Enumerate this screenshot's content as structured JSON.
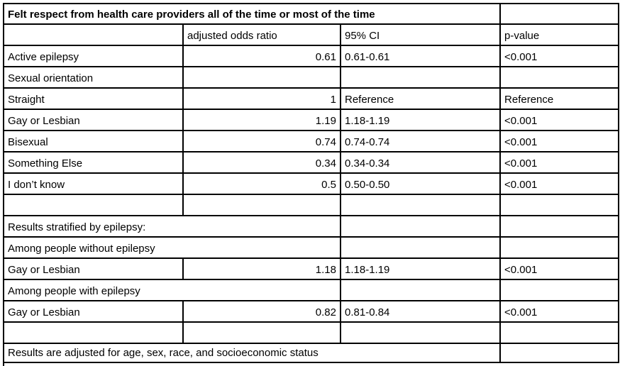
{
  "chart_data": {
    "type": "table",
    "title": "Felt respect from health care providers all of the time or most of the time",
    "columns": [
      "",
      "adjusted odds ratio",
      "95% CI",
      "p-value"
    ],
    "rows": [
      [
        "Active epilepsy",
        "0.61",
        "0.61-0.61",
        "<0.001"
      ],
      [
        "Sexual orientation",
        "",
        "",
        ""
      ],
      [
        "Straight",
        "1",
        "Reference",
        "Reference"
      ],
      [
        "Gay or Lesbian",
        "1.19",
        "1.18-1.19",
        "<0.001"
      ],
      [
        "Bisexual",
        "0.74",
        "0.74-0.74",
        "<0.001"
      ],
      [
        "Something Else",
        "0.34",
        "0.34-0.34",
        "<0.001"
      ],
      [
        "I don’t know",
        "0.5",
        "0.50-0.50",
        "<0.001"
      ],
      [
        "",
        "",
        "",
        ""
      ],
      [
        "Results stratified by epilepsy:",
        "",
        "",
        ""
      ],
      [
        "Among people without epilepsy",
        "",
        "",
        ""
      ],
      [
        "Gay or Lesbian",
        "1.18",
        "1.18-1.19",
        "<0.001"
      ],
      [
        "Among people with epilepsy",
        "",
        "",
        ""
      ],
      [
        "Gay or Lesbian",
        "0.82",
        "0.81-0.84",
        "<0.001"
      ],
      [
        "",
        "",
        "",
        ""
      ]
    ],
    "footnote": "Results are adjusted for age, sex, race, and socioeconomic status",
    "layout": {
      "grid": "black 2px cell borders",
      "text_color": "#000000",
      "background_color": "#ffffff",
      "number_alignment": "right",
      "text_alignment": "left"
    }
  }
}
